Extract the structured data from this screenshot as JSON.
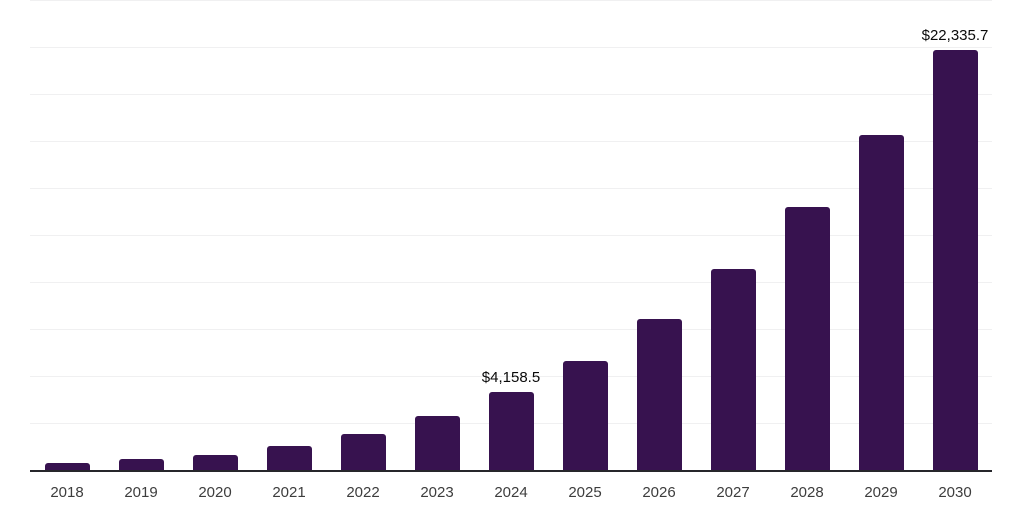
{
  "page": {
    "background_color": "#ffffff"
  },
  "chart_data": {
    "type": "bar",
    "title": "",
    "xlabel": "",
    "ylabel": "",
    "categories": [
      "2018",
      "2019",
      "2020",
      "2021",
      "2022",
      "2023",
      "2024",
      "2025",
      "2026",
      "2027",
      "2028",
      "2029",
      "2030"
    ],
    "values": [
      400,
      590,
      810,
      1280,
      1900,
      2890,
      4158.5,
      5780,
      8030,
      10690,
      13990,
      17820,
      22335.7
    ],
    "data_labels": [
      "",
      "",
      "",
      "",
      "",
      "",
      "$4,158.5",
      "",
      "",
      "",
      "",
      "",
      "$22,335.7"
    ],
    "ylim": [
      0,
      25000
    ],
    "gridline_interval": 2500,
    "grid": "horizontal-only",
    "legend_position": "none",
    "y_axis_tick_labels_visible": false,
    "colors": {
      "bar": "#37124f",
      "axis_line": "#26262b",
      "gridline": "#f0f0f1",
      "tick_label_text": "#3d3d3d",
      "data_label_text": "#0a0a0a"
    }
  }
}
